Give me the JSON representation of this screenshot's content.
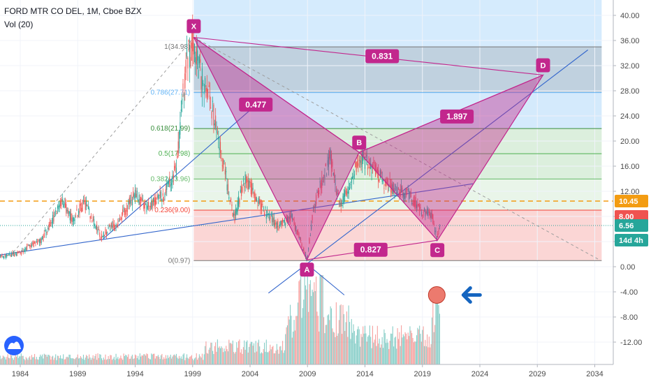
{
  "header": {
    "symbol_line": "FORD MTR CO DEL, 1M, Cboe BZX",
    "indicator": "Vol (20)"
  },
  "colors": {
    "pattern_fill": "#c2278d",
    "pattern_line": "#c2278d",
    "trend_line": "#3366cc",
    "orange_level": "#f39c12",
    "candle_up": "#26a69a",
    "candle_down": "#ef5350"
  },
  "chart_data": {
    "type": "candlestick",
    "title": "FORD MTR CO DEL, 1M, Cboe BZX",
    "x_axis_labels": [
      "1984",
      "1989",
      "1994",
      "1999",
      "2004",
      "2009",
      "2014",
      "2019",
      "2024",
      "2029",
      "2034"
    ],
    "y_axis_labels": [
      "40.00",
      "36.00",
      "32.00",
      "28.00",
      "24.00",
      "20.00",
      "16.00",
      "12.00",
      "8.00",
      "4.00",
      "0.00",
      "-4.00",
      "-8.00",
      "-12.00"
    ],
    "ylim": [
      -14,
      41
    ],
    "price_path": [
      [
        1981.5,
        1.2
      ],
      [
        1984,
        2.2
      ],
      [
        1986,
        4.5
      ],
      [
        1987.6,
        10.5
      ],
      [
        1988.5,
        7.5
      ],
      [
        1989.6,
        10.2
      ],
      [
        1991,
        4.8
      ],
      [
        1992.5,
        7.2
      ],
      [
        1994,
        11.5
      ],
      [
        1995,
        9.2
      ],
      [
        1996.5,
        11.5
      ],
      [
        1997.6,
        15.5
      ],
      [
        1998.4,
        32
      ],
      [
        1999.1,
        36
      ],
      [
        1999.7,
        30.5
      ],
      [
        2000.6,
        26
      ],
      [
        2001.6,
        17
      ],
      [
        2002.6,
        7.5
      ],
      [
        2003.6,
        14.5
      ],
      [
        2004.6,
        10.5
      ],
      [
        2005.6,
        8
      ],
      [
        2006.5,
        6.5
      ],
      [
        2007.6,
        8.2
      ],
      [
        2008.4,
        4
      ],
      [
        2008.95,
        1.1
      ],
      [
        2009.6,
        10
      ],
      [
        2011,
        17.5
      ],
      [
        2011.8,
        10
      ],
      [
        2012.5,
        12
      ],
      [
        2013.6,
        17.5
      ],
      [
        2014.6,
        16
      ],
      [
        2015.6,
        13.5
      ],
      [
        2017,
        12
      ],
      [
        2018,
        11
      ],
      [
        2019,
        9
      ],
      [
        2019.8,
        8.5
      ],
      [
        2020.25,
        4.8
      ],
      [
        2020.6,
        6.56
      ]
    ],
    "fib_levels": [
      {
        "label": "1(34.98)",
        "value": 34.98,
        "color": "#757575"
      },
      {
        "label": "0.786(27.71)",
        "value": 27.71,
        "color": "#64b5f6"
      },
      {
        "label": "0.618(21.99)",
        "value": 21.99,
        "color": "#388e3c"
      },
      {
        "label": "0.5(17.98)",
        "value": 17.98,
        "color": "#4caf50"
      },
      {
        "label": "0.382(13.96)",
        "value": 13.96,
        "color": "#66bb6a"
      },
      {
        "label": "0.236(9.00)",
        "value": 9.0,
        "color": "#f44336"
      },
      {
        "label": "0(0.97)",
        "value": 0.97,
        "color": "#757575"
      }
    ],
    "harmonic_pattern": {
      "points": [
        {
          "label": "X",
          "x": 1999.1,
          "y": 36.5
        },
        {
          "label": "A",
          "x": 2008.95,
          "y": 1.1
        },
        {
          "label": "B",
          "x": 2013.5,
          "y": 18.2
        },
        {
          "label": "C",
          "x": 2020.3,
          "y": 4.2
        },
        {
          "label": "D",
          "x": 2029.5,
          "y": 30.5
        }
      ],
      "ratios": [
        {
          "label": "0.831",
          "x": 2015.5,
          "y": 33.5
        },
        {
          "label": "0.477",
          "x": 2004.5,
          "y": 25.8
        },
        {
          "label": "1.897",
          "x": 2022,
          "y": 23.9
        },
        {
          "label": "0.827",
          "x": 2014.5,
          "y": 2.7
        }
      ]
    },
    "price_tags": [
      {
        "label": "10.45",
        "value": 10.45,
        "color": "#f39c12"
      },
      {
        "label": "8.00",
        "value": 8.0,
        "color": "#ef5350"
      },
      {
        "label": "6.56",
        "value": 6.56,
        "color": "#26a69a"
      },
      {
        "label": "14d 4h",
        "value": 4.3,
        "color": "#26a69a"
      }
    ],
    "orange_level": 10.45,
    "current_price": 6.56
  }
}
